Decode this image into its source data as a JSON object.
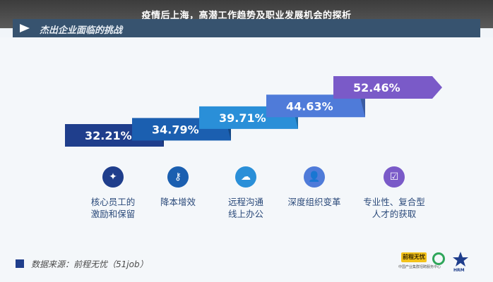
{
  "header": {
    "title": "疫情后上海，高潜工作趋势及职业发展机会的探析"
  },
  "section": {
    "heading": "杰出企业面临的挑战"
  },
  "chart_data": {
    "type": "bar",
    "categories": [
      "核心员工的\n激励和保留",
      "降本增效",
      "远程沟通\n线上办公",
      "深度组织变革",
      "专业性、复合型\n人才的获取"
    ],
    "values": [
      32.21,
      34.79,
      39.71,
      44.63,
      52.46
    ],
    "value_labels": [
      "32.21%",
      "34.79%",
      "39.71%",
      "44.63%",
      "52.46%"
    ],
    "colors": [
      "#1f3e8c",
      "#1b5fb0",
      "#2a8fd8",
      "#4f7bd9",
      "#7a5ac8"
    ]
  },
  "icons": [
    {
      "name": "star-map-icon",
      "glyph": "✦",
      "color": "#1f3e8c"
    },
    {
      "name": "key-icon",
      "glyph": "⚷",
      "color": "#1b5fb0"
    },
    {
      "name": "cloud-icon",
      "glyph": "☁",
      "color": "#2a8fd8"
    },
    {
      "name": "user-icon",
      "glyph": "👤",
      "color": "#4f7bd9"
    },
    {
      "name": "checklist-icon",
      "glyph": "☑",
      "color": "#7a5ac8"
    }
  ],
  "source": {
    "text": "数据来源：前程无忧（51job）"
  },
  "logos": {
    "logo1_text": "前程无忧",
    "logo1_sub": "中国产业集群招聘服务中心",
    "logo3_text": "HRM"
  }
}
